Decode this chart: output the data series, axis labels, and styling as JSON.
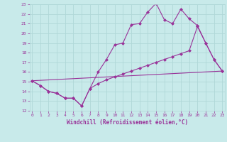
{
  "xlabel": "Windchill (Refroidissement éolien,°C)",
  "background_color": "#c8eaea",
  "grid_color": "#b0d8d8",
  "line_color": "#993399",
  "xmin": 0,
  "xmax": 23,
  "ymin": 12,
  "ymax": 23,
  "line1_x": [
    0,
    1,
    2,
    3,
    4,
    5,
    6,
    7,
    8,
    9,
    10,
    11,
    12,
    13,
    14,
    15,
    16,
    17,
    18,
    19,
    20,
    21,
    22,
    23
  ],
  "line1_y": [
    15.1,
    14.6,
    14.0,
    13.8,
    13.3,
    13.3,
    12.5,
    14.3,
    16.0,
    17.3,
    18.8,
    19.0,
    20.9,
    21.0,
    22.2,
    23.1,
    21.4,
    21.0,
    22.5,
    21.5,
    20.8,
    19.0,
    17.3,
    16.1
  ],
  "line2_x": [
    0,
    1,
    2,
    3,
    4,
    5,
    6,
    7,
    8,
    9,
    10,
    11,
    12,
    13,
    14,
    15,
    16,
    17,
    18,
    19,
    20,
    21,
    22,
    23
  ],
  "line2_y": [
    15.1,
    14.6,
    14.0,
    13.8,
    13.3,
    13.3,
    12.5,
    14.3,
    14.8,
    15.2,
    15.5,
    15.8,
    16.1,
    16.4,
    16.7,
    17.0,
    17.3,
    17.6,
    17.9,
    18.2,
    20.7,
    19.0,
    17.3,
    16.1
  ],
  "line3_x": [
    0,
    23
  ],
  "line3_y": [
    15.1,
    16.1
  ]
}
